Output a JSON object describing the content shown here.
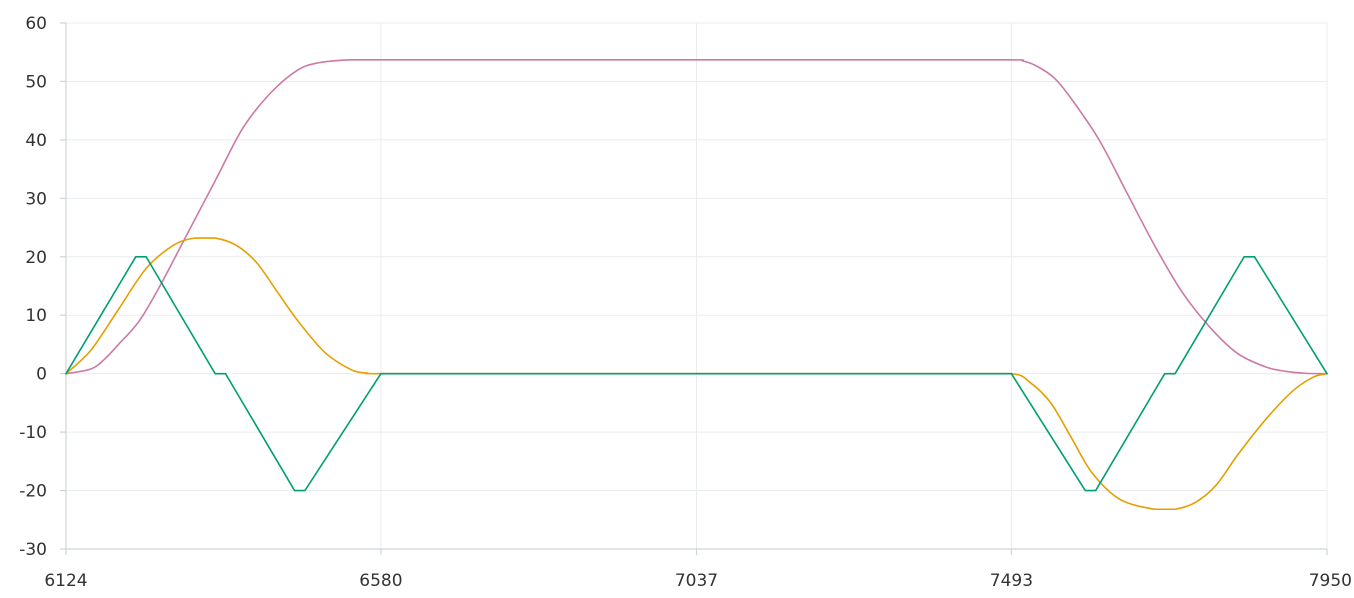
{
  "chart_data": {
    "type": "line",
    "title": "",
    "xlabel": "",
    "ylabel": "",
    "xlim": [
      6124,
      7950
    ],
    "ylim": [
      -30,
      60
    ],
    "x_ticks": [
      6124,
      6580,
      7037,
      7493,
      7950
    ],
    "x_tick_labels": [
      "6124",
      "6580",
      "7037",
      "7493",
      "7950"
    ],
    "y_ticks": [
      -30,
      -20,
      -10,
      0,
      10,
      20,
      30,
      40,
      50,
      60
    ],
    "y_tick_labels": [
      "-30",
      "-20",
      "-10",
      "0",
      "10",
      "20",
      "30",
      "40",
      "50",
      "60"
    ],
    "grid": true,
    "legend": "none",
    "series": [
      {
        "color": "#cc79a7",
        "x": [
          6124,
          6160,
          6180,
          6200,
          6230,
          6260,
          6300,
          6340,
          6380,
          6420,
          6460,
          6490,
          6520,
          6540,
          6560,
          6580,
          6700,
          6900,
          7100,
          7300,
          7490,
          7510,
          7530,
          7555,
          7580,
          7620,
          7660,
          7700,
          7740,
          7780,
          7820,
          7860,
          7890,
          7920,
          7950
        ],
        "y": [
          0,
          0.8,
          2.5,
          5,
          9,
          15,
          24,
          33,
          42,
          48,
          52,
          53.2,
          53.6,
          53.7,
          53.7,
          53.7,
          53.7,
          53.7,
          53.7,
          53.7,
          53.7,
          53.5,
          52.6,
          50.6,
          47,
          40,
          31,
          22,
          14,
          8,
          3.5,
          1.2,
          0.4,
          0.05,
          0
        ]
      },
      {
        "color": "#e69f00",
        "x": [
          6124,
          6160,
          6200,
          6240,
          6280,
          6310,
          6340,
          6370,
          6400,
          6430,
          6460,
          6500,
          6540,
          6560,
          6580,
          6800,
          7000,
          7200,
          7400,
          7493,
          7520,
          7550,
          7580,
          7610,
          7650,
          7700,
          7730,
          7760,
          7790,
          7820,
          7860,
          7900,
          7930,
          7950
        ],
        "y": [
          0,
          4,
          11,
          18,
          22,
          23.2,
          23.2,
          22,
          19,
          14,
          9,
          3.5,
          0.5,
          0.1,
          0,
          0,
          0,
          0,
          0,
          0,
          -1.5,
          -5,
          -11,
          -17,
          -21.5,
          -23.2,
          -23.2,
          -22,
          -19,
          -14,
          -8,
          -3,
          -0.6,
          0
        ]
      },
      {
        "color": "#009e73",
        "x": [
          6124,
          6225,
          6240,
          6340,
          6355,
          6455,
          6470,
          6580,
          6800,
          7000,
          7200,
          7400,
          7493,
          7600,
          7615,
          7715,
          7730,
          7830,
          7845,
          7950
        ],
        "y": [
          0,
          20,
          20,
          0,
          0,
          -20,
          -20,
          0,
          0,
          0,
          0,
          0,
          0,
          -20,
          -20,
          0,
          0,
          20,
          20,
          0
        ]
      }
    ]
  }
}
